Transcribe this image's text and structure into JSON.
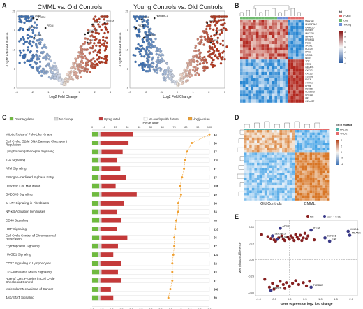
{
  "panels": {
    "A": "A",
    "B": "B",
    "C": "C",
    "D": "D",
    "E": "E"
  },
  "volcano_left": {
    "title": "CMML vs. Old Controls",
    "xlabel": "Log2 Fold Change",
    "ylabel": "-Log10 Adjusted P-value",
    "xticks": [
      "-3",
      "-2",
      "-1",
      "0",
      "1",
      "2",
      "3"
    ],
    "yticks": [
      "0",
      "5",
      "10",
      "15",
      "20"
    ],
    "gene_labels": [
      "CMM2",
      "WNT5A",
      "PRDM",
      "UNC13B",
      "LMNA",
      "SYS1",
      "PLOD2",
      "MMP2",
      "PALM",
      "TMEFF"
    ]
  },
  "volcano_right": {
    "title": "Young Controls vs. Old Controls",
    "xlabel": "Log2 Fold Change",
    "ylabel": "-Log10 Adjusted P-value",
    "xticks": [
      "-3",
      "-2",
      "-1",
      "0",
      "1",
      "2",
      "3"
    ],
    "yticks": [
      "0",
      "5",
      "10",
      "15",
      "20"
    ],
    "gene_labels": [
      "HNRNPAL1",
      "MMP2",
      "PRDM",
      "ABCG2",
      "TMPRSS2",
      "LMNA",
      "CD93"
    ]
  },
  "heatmap_b": {
    "legend_title": "tri",
    "legend_items": [
      {
        "label": "CMML",
        "color": "#e06c6c"
      },
      {
        "label": "Old",
        "color": "#6fba6f"
      },
      {
        "label": "Young",
        "color": "#6f8fd6"
      }
    ],
    "scale_ticks": [
      "3",
      "2",
      "1",
      "0",
      "-1",
      "-2",
      "-3"
    ],
    "genes": [
      "MAN1A1",
      "HNRNPAL2",
      "CAMK2D",
      "PRDM1",
      "UNC13B",
      "NIPAL4",
      "PRDM16",
      "DGS2",
      "SRSF1",
      "PDZD9",
      "LPIN3",
      "SORL1",
      "DNM1",
      "TOX",
      "STX9",
      "GIMAP6",
      "CXCL2",
      "CXCL3",
      "S100A8",
      "ENT4",
      "STMN2",
      "EPHB",
      "DDB1B",
      "SLC23A2",
      "CRELD",
      "OKI",
      "C19orf57"
    ]
  },
  "heatmap_d": {
    "legend_title": "TET2 mutant",
    "legend_items": [
      {
        "label": "FALSE",
        "color": "#4fb2a8"
      },
      {
        "label": "TRUE",
        "color": "#e46c6c"
      }
    ],
    "scale_ticks": [
      "4",
      "2",
      "0",
      "-2",
      "-4"
    ],
    "group_labels": [
      "Old Controls",
      "CMML"
    ]
  },
  "chart_data": [
    {
      "type": "bar",
      "panel": "C",
      "legend": [
        "Downregulated",
        "No change",
        "Upregulated",
        "No overlap with dataset",
        "-log(p-value)"
      ],
      "xlabel_top": "Percentage",
      "xlabel_bottom": "-log(p-value)",
      "top_ticks": [
        "0",
        "10",
        "20",
        "30",
        "40",
        "50",
        "60",
        "70",
        "80",
        "90",
        "100"
      ],
      "bottom_ticks": [
        "0.0",
        "0.5",
        "1.0",
        "1.5",
        "2.0",
        "2.5",
        "3.0",
        "3.5",
        "4.0",
        "4.5",
        "5.0",
        "5.5",
        "6.0"
      ],
      "categories": [
        "Mitotic Roles of Polo-Like Kinase",
        "Cell Cycle: G2/M DNA Damage Checkpoint Regulation",
        "Lymphotoxin β Receptor Signaling",
        "IL-6 Signaling",
        "ATM Signaling",
        "Estrogen-mediated S-phase Entry",
        "Dendritic Cell Maturation",
        "GADD45 Signaling",
        "IL-17A Signaling in Fibroblasts",
        "NF-κB Activation by Viruses",
        "CD40 Signaling",
        "HGF Signaling",
        "Cell Cycle Control of Chromosomal Replication",
        "Erythropoietin Signaling",
        "HMGB1 Signaling",
        "CD27 Signaling in Lymphocytes",
        "LPS-stimulated MAPK Signaling",
        "Role of CHK Proteins in Cell Cycle Checkpoint Control",
        "Molecular Mechanisms of Cancer",
        "JAK/STAT Signaling"
      ],
      "counts": [
        "63",
        "50",
        "67",
        "134",
        "97",
        "27",
        "185",
        "19",
        "36",
        "83",
        "70",
        "116",
        "56",
        "87",
        "137",
        "62",
        "93",
        "57",
        "366",
        "89"
      ],
      "series": [
        {
          "name": "Downregulated",
          "color": "#6fba3f",
          "values": [
            5,
            5,
            5,
            5,
            6,
            5,
            6,
            6,
            5,
            5,
            6,
            5,
            6,
            5,
            5,
            5,
            6,
            5,
            5,
            5
          ]
        },
        {
          "name": "No change",
          "color": "#d8d8d8",
          "values": [
            2,
            2,
            3,
            2,
            2,
            2,
            2,
            2,
            2,
            2,
            2,
            2,
            2,
            3,
            2,
            2,
            2,
            2,
            2,
            2
          ]
        },
        {
          "name": "Upregulated",
          "color": "#c43a3a",
          "values": [
            28,
            24,
            18,
            14,
            16,
            22,
            12,
            30,
            20,
            14,
            17,
            14,
            22,
            14,
            11,
            18,
            14,
            18,
            9,
            11
          ]
        }
      ],
      "neglog_p": [
        6.0,
        5.1,
        4.85,
        4.75,
        4.7,
        4.6,
        4.5,
        4.55,
        4.4,
        4.4,
        4.3,
        4.25,
        4.2,
        4.2,
        4.15,
        4.1,
        4.1,
        4.1,
        4.0,
        3.9
      ],
      "xlim_pct": [
        0,
        100
      ],
      "xlim_p": [
        0,
        6.0
      ]
    },
    {
      "type": "scatter",
      "panel": "E",
      "legend": [
        {
          "label": "NS",
          "color": "#8a1f1f"
        },
        {
          "label": "|cor| < 0.01",
          "color": "#3a3a8a"
        }
      ],
      "xlabel": "Gene expression log2 fold change",
      "ylabel": "Methylation difference",
      "xticks": [
        "-1.0",
        "-0.5",
        "0.0",
        "0.5",
        "1.0",
        "1.5",
        "2.0"
      ],
      "yticks": [
        "0.50",
        "0.25",
        "0.00",
        "-0.25",
        "-0.50"
      ],
      "xlim": [
        -1.1,
        2.2
      ],
      "ylim": [
        -0.55,
        0.6
      ],
      "labeled_points": [
        {
          "label": "ACSS1",
          "x": -0.3,
          "y": 0.48
        },
        {
          "label": "IFITM",
          "x": 0.7,
          "y": 0.45
        },
        {
          "label": "SERINC5",
          "x": -0.55,
          "y": 0.36
        },
        {
          "label": "ANO10",
          "x": -0.4,
          "y": 0.31
        },
        {
          "label": "ZNF816",
          "x": 1.15,
          "y": 0.33
        },
        {
          "label": "VCAN1",
          "x": 1.9,
          "y": 0.43
        },
        {
          "label": "MSANS",
          "x": 1.95,
          "y": 0.37
        },
        {
          "label": "ENF",
          "x": 1.3,
          "y": 0.28
        },
        {
          "label": "TUBB1B",
          "x": 0.7,
          "y": -0.42
        },
        {
          "label": "PTPRN",
          "x": -0.6,
          "y": -0.47
        }
      ],
      "ns_points": [
        [
          -0.9,
          0.38
        ],
        [
          -0.7,
          0.35
        ],
        [
          -0.6,
          0.32
        ],
        [
          -0.5,
          0.3
        ],
        [
          -0.45,
          0.28
        ],
        [
          -0.35,
          0.33
        ],
        [
          -0.25,
          0.36
        ],
        [
          -0.2,
          0.31
        ],
        [
          -0.15,
          0.29
        ],
        [
          -0.05,
          0.34
        ],
        [
          0.0,
          0.31
        ],
        [
          0.05,
          0.36
        ],
        [
          0.1,
          0.33
        ],
        [
          0.15,
          0.29
        ],
        [
          0.2,
          0.38
        ],
        [
          0.25,
          0.34
        ],
        [
          0.3,
          0.31
        ],
        [
          0.35,
          0.37
        ],
        [
          0.4,
          0.29
        ],
        [
          0.45,
          0.33
        ],
        [
          0.5,
          0.4
        ],
        [
          0.55,
          0.32
        ],
        [
          0.6,
          0.36
        ],
        [
          0.8,
          0.3
        ],
        [
          -0.8,
          -0.3
        ],
        [
          -0.55,
          -0.36
        ],
        [
          -0.4,
          -0.4
        ],
        [
          -0.3,
          -0.33
        ],
        [
          -0.2,
          -0.38
        ],
        [
          -0.1,
          -0.35
        ],
        [
          0.0,
          -0.41
        ],
        [
          0.1,
          -0.36
        ],
        [
          0.2,
          -0.32
        ],
        [
          0.3,
          -0.38
        ],
        [
          0.45,
          -0.35
        ],
        [
          0.55,
          -0.4
        ],
        [
          -0.65,
          -0.42
        ],
        [
          -0.5,
          -0.45
        ],
        [
          0.65,
          -0.33
        ],
        [
          -0.15,
          -0.44
        ]
      ]
    }
  ]
}
